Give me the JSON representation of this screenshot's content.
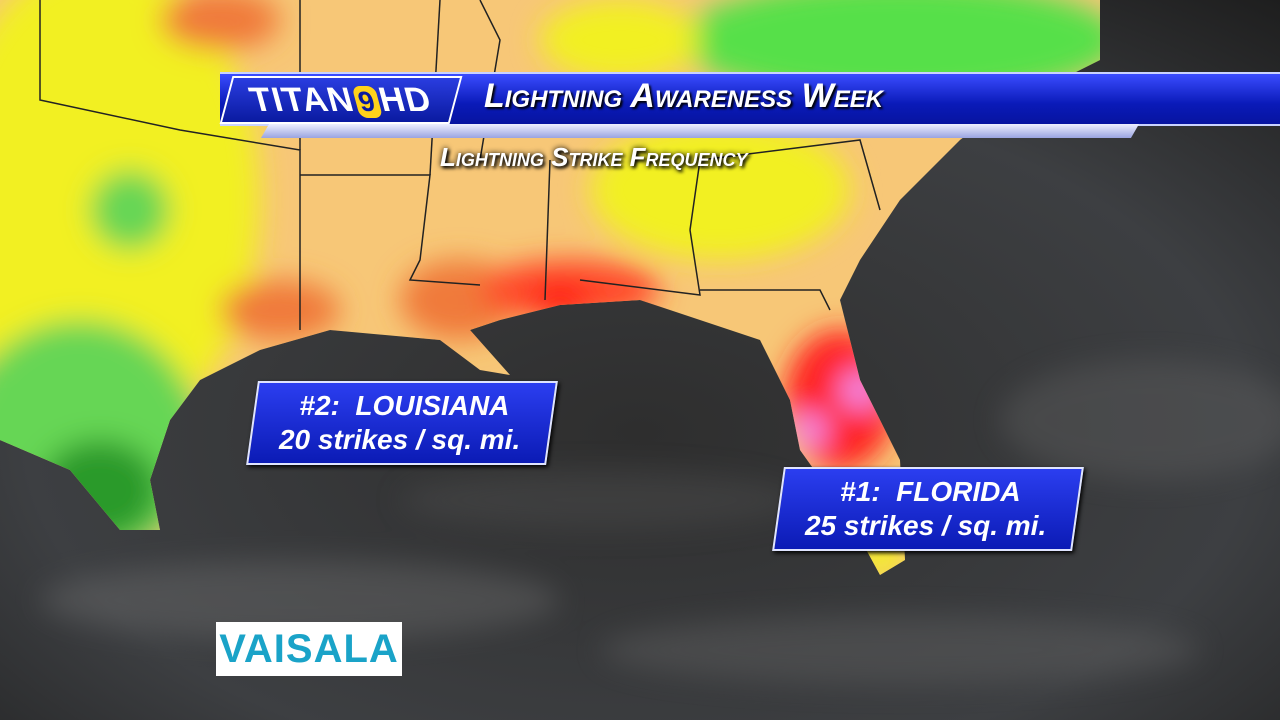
{
  "header": {
    "logo": {
      "name": "TITAN",
      "number": "9",
      "suffix": "HD"
    },
    "title": "Lightning Awareness Week",
    "subtitle": "Lightning Strike Frequency"
  },
  "callouts": [
    {
      "rank": "#2:  LOUISIANA",
      "value": "20 strikes / sq. mi."
    },
    {
      "rank": "#1:  FLORIDA",
      "value": "25 strikes / sq. mi."
    }
  ],
  "source": "VAISALA"
}
